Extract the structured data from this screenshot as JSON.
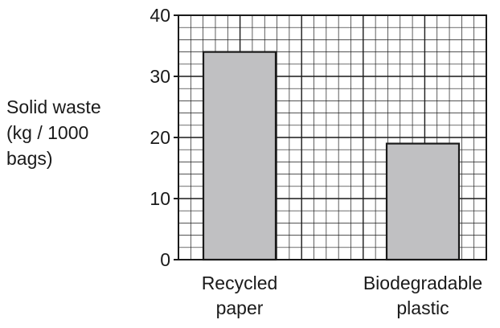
{
  "chart_data": {
    "type": "bar",
    "categories": [
      "Recycled paper",
      "Biodegradable plastic"
    ],
    "category_lines": [
      [
        "Recycled",
        "paper"
      ],
      [
        "Biodegradable",
        "plastic"
      ]
    ],
    "values": [
      34,
      19
    ],
    "ylabel_lines": [
      "Solid waste",
      "(kg / 1000",
      "bags)"
    ],
    "ylim": [
      0,
      40
    ],
    "yticks": [
      0,
      10,
      20,
      30,
      40
    ],
    "minor_step": 2,
    "grid": true,
    "bar_color": "#c0c0c2",
    "line_color": "#1a1a1a"
  }
}
